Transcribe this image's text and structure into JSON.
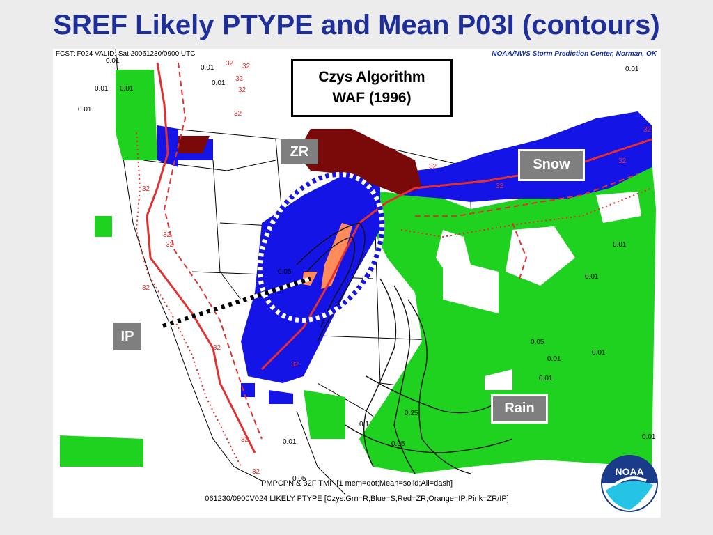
{
  "slide_title": "SREF Likely PTYPE and Mean P03I (contours)",
  "map": {
    "header_text": "FCST: F024  VALID: Sat  20061230/0900 UTC",
    "credit_text": "NOAA/NWS Storm Prediction Center, Norman, OK",
    "footer_line1": "PMPCPN & 32F TMP [1 mem=dot;Mean=solid;All=dash]",
    "footer_line2": "061230/0900V024 LIKELY PTYPE [Czys:Grn=R;Blue=S;Red=ZR;Orange=IP;Pink=ZR/IP]",
    "colors": {
      "rain": "#1fd21f",
      "snow": "#1414e6",
      "freezing_rain": "#7a0a0a",
      "ice_pellets": "#ff8c5a",
      "contour_32": "#e23030"
    },
    "contour_labels": [
      "0.01",
      "0.05",
      "0.1",
      "0.25",
      "32"
    ]
  },
  "annotations": {
    "algorithm_line1": "Czys Algorithm",
    "algorithm_line2": "WAF (1996)",
    "zr": "ZR",
    "ip": "IP",
    "snow": "Snow",
    "rain": "Rain"
  },
  "logo_text": "NOAA"
}
